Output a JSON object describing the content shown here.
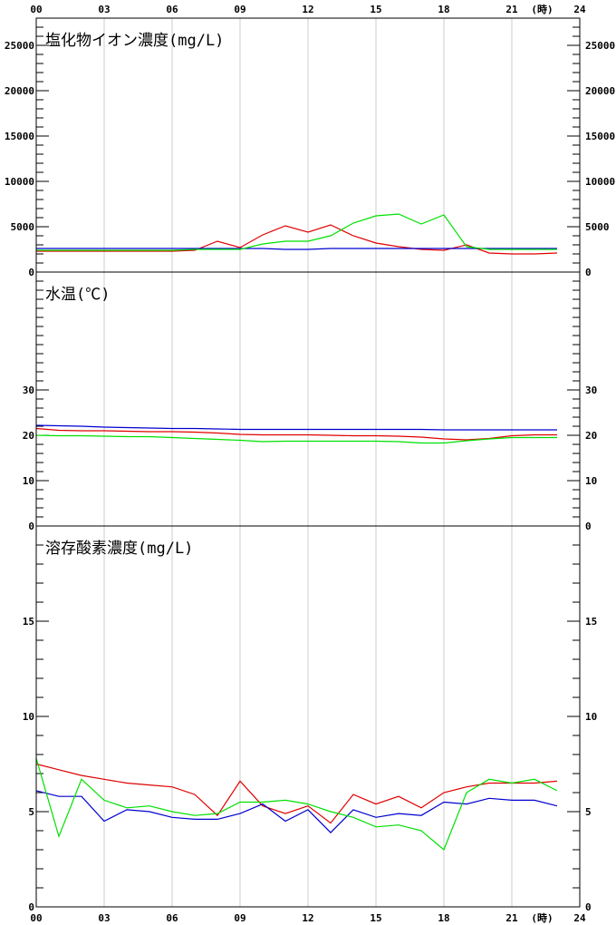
{
  "x_axis": {
    "ticks": [
      "00",
      "03",
      "06",
      "09",
      "12",
      "15",
      "18",
      "21",
      "24"
    ],
    "unit_label": "(時)"
  },
  "colors": {
    "series_red": "#e00000",
    "series_blue": "#0000d0",
    "series_green": "#00e000",
    "grid": "#cccccc",
    "axis": "#000000"
  },
  "chart_data": [
    {
      "type": "line",
      "title": "塩化物イオン濃度(mg/L)",
      "ylim": [
        0,
        28000
      ],
      "yticks": [
        "0",
        "5000",
        "10000",
        "15000",
        "20000",
        "25000"
      ],
      "x": [
        0,
        1,
        2,
        3,
        4,
        5,
        6,
        7,
        8,
        9,
        10,
        11,
        12,
        13,
        14,
        15,
        16,
        17,
        18,
        19,
        20,
        21,
        22,
        23
      ],
      "series": [
        {
          "color": "red",
          "values": [
            2300,
            2300,
            2300,
            2300,
            2300,
            2300,
            2300,
            2400,
            3400,
            2700,
            4100,
            5100,
            4400,
            5200,
            4000,
            3200,
            2800,
            2500,
            2400,
            3000,
            2100,
            2000,
            2000,
            2100
          ]
        },
        {
          "color": "blue",
          "values": [
            2600,
            2600,
            2600,
            2600,
            2600,
            2600,
            2600,
            2600,
            2600,
            2600,
            2600,
            2500,
            2500,
            2600,
            2600,
            2600,
            2600,
            2600,
            2600,
            2600,
            2600,
            2600,
            2600,
            2600
          ]
        },
        {
          "color": "green",
          "values": [
            2400,
            2400,
            2400,
            2400,
            2400,
            2400,
            2400,
            2500,
            2500,
            2500,
            3100,
            3400,
            3400,
            4000,
            5400,
            6200,
            6400,
            5300,
            6300,
            2800,
            2500,
            2500,
            2500,
            2500
          ]
        }
      ]
    },
    {
      "type": "line",
      "title": "水温(℃)",
      "ylim": [
        0,
        56
      ],
      "yticks": [
        "0",
        "10",
        "20",
        "30"
      ],
      "x": [
        0,
        1,
        2,
        3,
        4,
        5,
        6,
        7,
        8,
        9,
        10,
        11,
        12,
        13,
        14,
        15,
        16,
        17,
        18,
        19,
        20,
        21,
        22,
        23
      ],
      "series": [
        {
          "color": "red",
          "values": [
            21.5,
            21.1,
            21.0,
            21.0,
            20.9,
            20.8,
            20.8,
            20.7,
            20.5,
            20.2,
            20.1,
            20.1,
            20.1,
            20.0,
            19.9,
            19.9,
            19.8,
            19.6,
            19.2,
            19.0,
            19.3,
            19.9,
            20.1,
            20.1
          ]
        },
        {
          "color": "blue",
          "values": [
            22.2,
            22.1,
            22.0,
            21.8,
            21.7,
            21.6,
            21.5,
            21.5,
            21.4,
            21.3,
            21.3,
            21.3,
            21.3,
            21.3,
            21.3,
            21.3,
            21.3,
            21.3,
            21.2,
            21.2,
            21.2,
            21.2,
            21.2,
            21.2
          ]
        },
        {
          "color": "green",
          "values": [
            20.0,
            19.9,
            19.9,
            19.8,
            19.7,
            19.7,
            19.5,
            19.3,
            19.1,
            18.9,
            18.6,
            18.7,
            18.7,
            18.7,
            18.7,
            18.7,
            18.6,
            18.3,
            18.3,
            18.8,
            19.2,
            19.5,
            19.5,
            19.5
          ]
        }
      ]
    },
    {
      "type": "line",
      "title": "溶存酸素濃度(mg/L)",
      "ylim": [
        0,
        20
      ],
      "yticks": [
        "0",
        "5",
        "10",
        "15"
      ],
      "x": [
        0,
        1,
        2,
        3,
        4,
        5,
        6,
        7,
        8,
        9,
        10,
        11,
        12,
        13,
        14,
        15,
        16,
        17,
        18,
        19,
        20,
        21,
        22,
        23
      ],
      "series": [
        {
          "color": "red",
          "values": [
            7.5,
            7.2,
            6.9,
            6.7,
            6.5,
            6.4,
            6.3,
            5.9,
            4.8,
            6.6,
            5.3,
            4.9,
            5.3,
            4.4,
            5.9,
            5.4,
            5.8,
            5.2,
            6.0,
            6.3,
            6.5,
            6.5,
            6.5,
            6.6
          ]
        },
        {
          "color": "blue",
          "values": [
            6.1,
            5.8,
            5.8,
            4.5,
            5.1,
            5.0,
            4.7,
            4.6,
            4.6,
            4.9,
            5.4,
            4.5,
            5.1,
            3.9,
            5.1,
            4.7,
            4.9,
            4.8,
            5.5,
            5.4,
            5.7,
            5.6,
            5.6,
            5.3
          ]
        },
        {
          "color": "green",
          "values": [
            7.8,
            3.7,
            6.7,
            5.6,
            5.2,
            5.3,
            5.0,
            4.8,
            4.9,
            5.5,
            5.5,
            5.6,
            5.4,
            5.0,
            4.7,
            4.2,
            4.3,
            4.0,
            3.0,
            6.0,
            6.7,
            6.5,
            6.7,
            6.1
          ]
        }
      ]
    }
  ]
}
